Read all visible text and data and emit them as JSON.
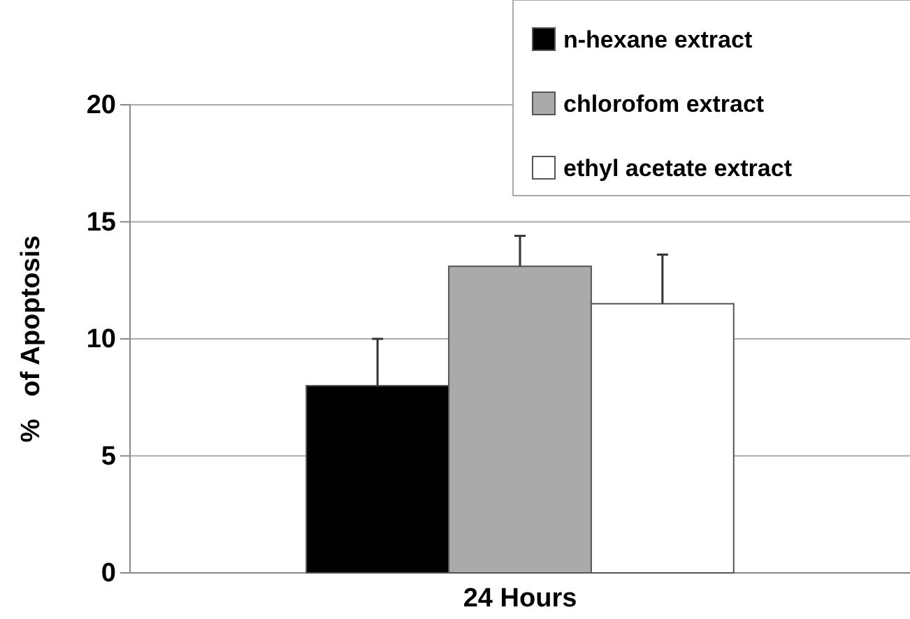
{
  "chart_data": {
    "type": "bar",
    "ylabel": "%   of Apoptosis",
    "categories": [
      "24 Hours"
    ],
    "series": [
      {
        "name": "n-hexane extract",
        "color": "#000000",
        "values": [
          8.0
        ],
        "errors": [
          [
            8.0,
            10.0
          ]
        ]
      },
      {
        "name": "chlorofom extract",
        "color": "#aaaaaa",
        "values": [
          13.1
        ],
        "errors": [
          [
            13.1,
            14.4
          ]
        ]
      },
      {
        "name": "ethyl acetate extract",
        "color": "#ffffff",
        "values": [
          11.5
        ],
        "errors": [
          [
            11.5,
            13.6
          ]
        ]
      }
    ],
    "ylim": [
      0,
      20
    ],
    "yticks": [
      0,
      5,
      10,
      15,
      20
    ],
    "grid": "y",
    "legend": "top right"
  }
}
